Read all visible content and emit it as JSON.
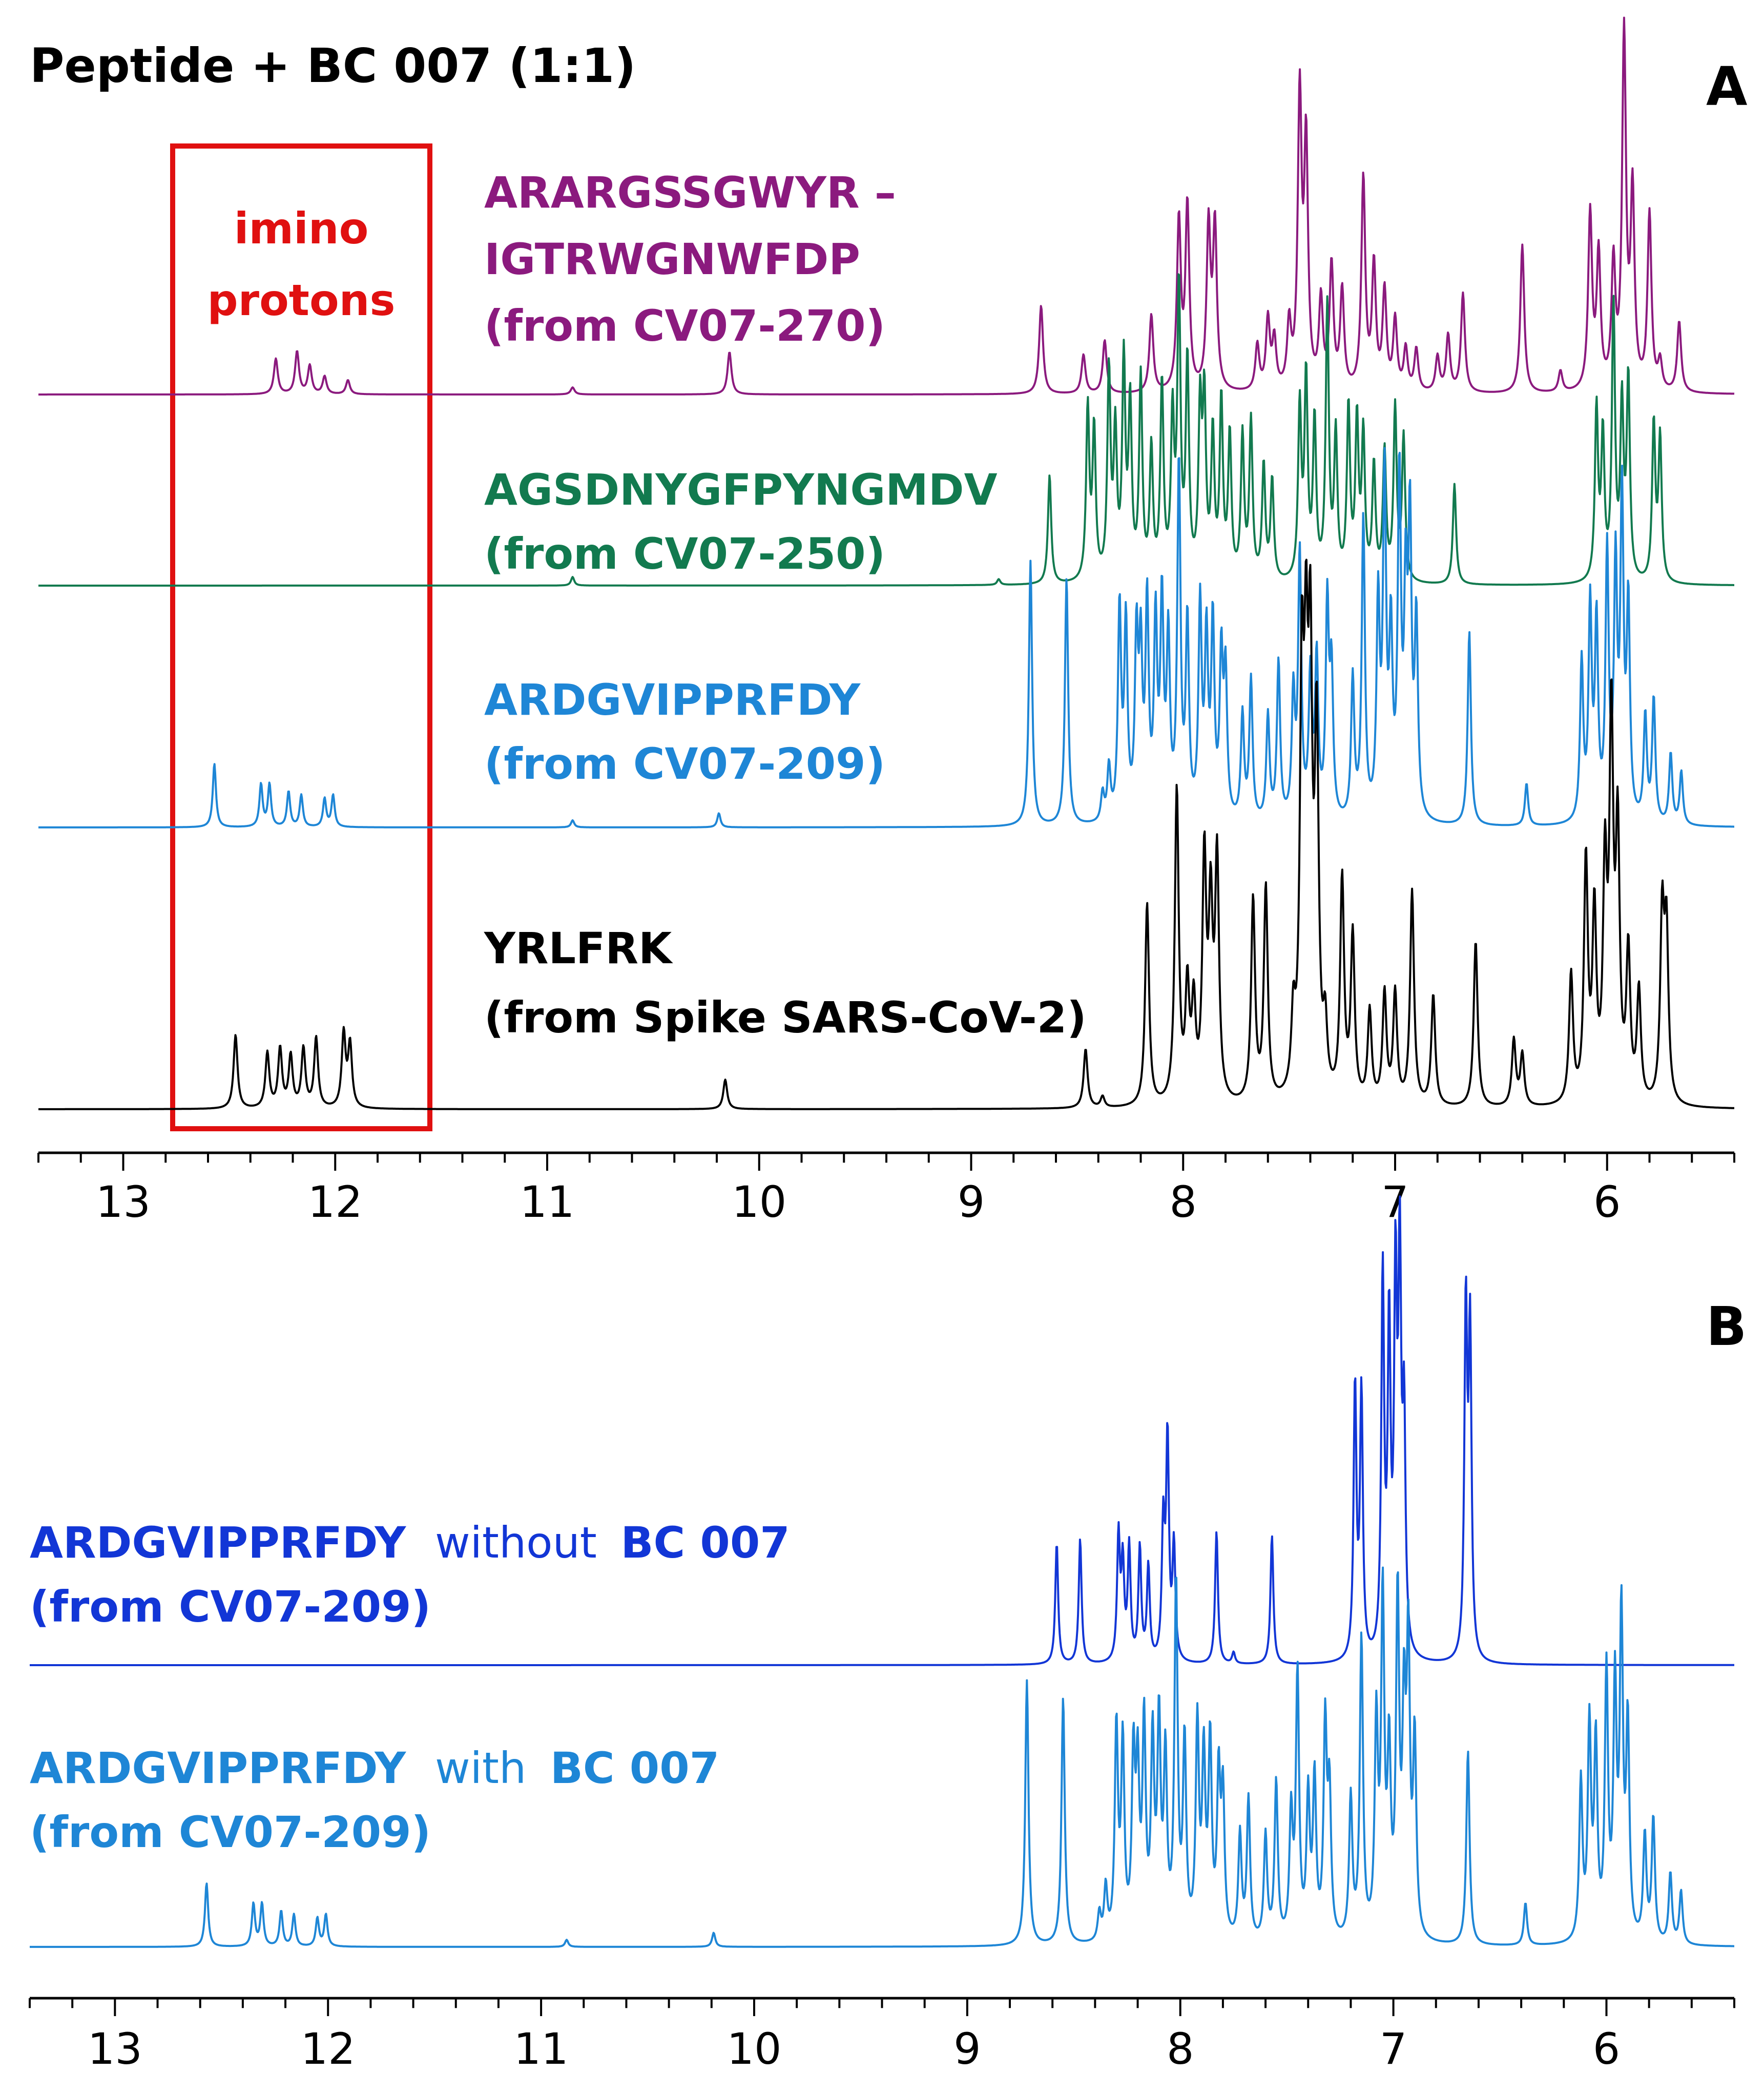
{
  "figure_title": "Peptide + BC 007 (1:1)",
  "box_label": {
    "line1": "imino",
    "line2": "protons"
  },
  "colors": {
    "purple": "#8B1A7E",
    "green": "#127A4F",
    "blue": "#1E86D6",
    "black": "#000000",
    "darkblue": "#1236D6",
    "red": "#E01010"
  },
  "chart_data": [
    {
      "panel": "A",
      "type": "line",
      "title": "Peptide + BC 007 (1:1)",
      "xlabel": "",
      "ylabel": "",
      "xlim": [
        13.4,
        5.4
      ],
      "x_ticks": [
        13,
        12,
        11,
        10,
        9,
        8,
        7,
        6
      ],
      "x_tick_labels": [
        "13",
        "12",
        "11",
        "10",
        "9",
        "8",
        "7",
        "6"
      ],
      "annotation": {
        "text": "imino protons",
        "x_range": [
          12.75,
          11.55
        ],
        "color": "#E01010"
      },
      "series": [
        {
          "name": "ARARGSSGWYR – IGTRWGNWFDP (from CV07-270)",
          "label_lines": [
            "ARARGSSGWYR –",
            "IGTRWGNWFDP",
            "(from CV07-270)"
          ],
          "color": "#8B1A7E",
          "baseline_rank": 0,
          "peak_ppm": [
            12.28,
            12.18,
            12.12,
            12.05,
            11.94,
            10.88,
            10.14,
            8.67,
            8.47,
            8.37,
            8.15,
            8.02,
            7.98,
            7.88,
            7.85,
            7.65,
            7.6,
            7.57,
            7.5,
            7.45,
            7.42,
            7.35,
            7.3,
            7.25,
            7.15,
            7.1,
            7.05,
            7.0,
            6.95,
            6.9,
            6.8,
            6.75,
            6.68,
            6.4,
            6.22,
            6.08,
            6.04,
            5.97,
            5.92,
            5.88,
            5.8,
            5.75,
            5.66
          ],
          "peak_height": [
            0.1,
            0.12,
            0.08,
            0.05,
            0.04,
            0.02,
            0.12,
            0.25,
            0.11,
            0.15,
            0.22,
            0.48,
            0.52,
            0.46,
            0.46,
            0.13,
            0.2,
            0.14,
            0.18,
            0.82,
            0.68,
            0.25,
            0.35,
            0.28,
            0.6,
            0.35,
            0.28,
            0.2,
            0.12,
            0.12,
            0.1,
            0.16,
            0.28,
            0.42,
            0.06,
            0.5,
            0.38,
            0.35,
            1.0,
            0.55,
            0.5,
            0.08,
            0.2
          ]
        },
        {
          "name": "AGSDNYGFPYNGMDV (from CV07-250)",
          "label_lines": [
            "AGSDNYGFPYNGMDV",
            "(from CV07-250)"
          ],
          "color": "#127A4F",
          "baseline_rank": 1,
          "peak_ppm": [
            10.88,
            8.87,
            8.63,
            8.45,
            8.42,
            8.35,
            8.32,
            8.28,
            8.25,
            8.2,
            8.15,
            8.1,
            8.05,
            8.02,
            7.98,
            7.92,
            7.9,
            7.86,
            7.82,
            7.78,
            7.72,
            7.68,
            7.62,
            7.58,
            7.45,
            7.42,
            7.38,
            7.32,
            7.28,
            7.22,
            7.18,
            7.15,
            7.1,
            7.05,
            7.0,
            6.96,
            6.72,
            6.05,
            6.02,
            5.97,
            5.93,
            5.9,
            5.78,
            5.75
          ],
          "peak_height": [
            0.03,
            0.02,
            0.38,
            0.6,
            0.52,
            0.72,
            0.5,
            0.75,
            0.6,
            0.7,
            0.45,
            0.68,
            0.55,
            1.0,
            0.75,
            0.58,
            0.6,
            0.5,
            0.62,
            0.5,
            0.5,
            0.55,
            0.4,
            0.35,
            0.6,
            0.7,
            0.55,
            0.95,
            0.5,
            0.6,
            0.55,
            0.5,
            0.4,
            0.45,
            0.6,
            0.5,
            0.35,
            0.6,
            0.5,
            0.95,
            0.6,
            0.7,
            0.55,
            0.5
          ]
        },
        {
          "name": "ARDGVIPPRFDY (from CV07-209)",
          "label_lines": [
            "ARDGVIPPRFDY",
            "(from CV07-209)"
          ],
          "color": "#1E86D6",
          "baseline_rank": 2,
          "peak_ppm": [
            12.57,
            12.35,
            12.31,
            12.22,
            12.16,
            12.05,
            12.01,
            10.88,
            10.19,
            8.72,
            8.55,
            8.38,
            8.35,
            8.3,
            8.27,
            8.22,
            8.2,
            8.17,
            8.13,
            8.1,
            8.07,
            8.02,
            7.98,
            7.92,
            7.89,
            7.86,
            7.82,
            7.8,
            7.72,
            7.68,
            7.6,
            7.55,
            7.48,
            7.45,
            7.4,
            7.37,
            7.32,
            7.3,
            7.2,
            7.15,
            7.08,
            7.05,
            7.02,
            6.98,
            6.95,
            6.93,
            6.9,
            6.65,
            6.38,
            6.12,
            6.08,
            6.05,
            6.0,
            5.96,
            5.93,
            5.9,
            5.82,
            5.78,
            5.7,
            5.65
          ],
          "peak_height": [
            0.18,
            0.12,
            0.12,
            0.1,
            0.09,
            0.08,
            0.09,
            0.02,
            0.04,
            0.75,
            0.7,
            0.08,
            0.15,
            0.6,
            0.55,
            0.5,
            0.45,
            0.6,
            0.55,
            0.6,
            0.5,
            1.0,
            0.55,
            0.6,
            0.5,
            0.55,
            0.45,
            0.4,
            0.3,
            0.4,
            0.3,
            0.45,
            0.35,
            0.75,
            0.4,
            0.45,
            0.6,
            0.4,
            0.4,
            0.85,
            0.6,
            0.95,
            0.5,
            0.95,
            0.6,
            0.8,
            0.55,
            0.55,
            0.12,
            0.45,
            0.6,
            0.55,
            0.75,
            0.7,
            0.9,
            0.6,
            0.3,
            0.35,
            0.2,
            0.15
          ]
        },
        {
          "name": "YRLFRK (from Spike SARS-CoV-2)",
          "label_lines": [
            "YRLFRK",
            "(from Spike SARS-CoV-2)"
          ],
          "color": "#000000",
          "baseline_rank": 3,
          "peak_ppm": [
            12.47,
            12.32,
            12.26,
            12.21,
            12.15,
            12.09,
            11.96,
            11.93,
            10.16,
            8.46,
            8.38,
            8.17,
            8.03,
            7.98,
            7.95,
            7.9,
            7.87,
            7.84,
            7.67,
            7.61,
            7.48,
            7.44,
            7.42,
            7.4,
            7.37,
            7.33,
            7.25,
            7.2,
            7.12,
            7.05,
            7.0,
            6.92,
            6.82,
            6.62,
            6.44,
            6.4,
            6.17,
            6.1,
            6.06,
            6.01,
            5.98,
            5.95,
            5.9,
            5.85,
            5.74,
            5.72
          ],
          "peak_height": [
            0.2,
            0.15,
            0.16,
            0.14,
            0.16,
            0.19,
            0.2,
            0.17,
            0.08,
            0.16,
            0.03,
            0.55,
            0.85,
            0.3,
            0.25,
            0.65,
            0.5,
            0.65,
            0.55,
            0.58,
            0.2,
            1.05,
            0.95,
            1.05,
            0.95,
            0.18,
            0.6,
            0.45,
            0.25,
            0.3,
            0.3,
            0.58,
            0.3,
            0.45,
            0.18,
            0.14,
            0.35,
            0.65,
            0.5,
            0.6,
            1.0,
            0.7,
            0.4,
            0.3,
            0.5,
            0.45
          ]
        }
      ]
    },
    {
      "panel": "B",
      "type": "line",
      "title": "",
      "xlabel": "",
      "ylabel": "",
      "xlim": [
        13.4,
        5.4
      ],
      "x_ticks": [
        13,
        12,
        11,
        10,
        9,
        8,
        7,
        6
      ],
      "x_tick_labels": [
        "13",
        "12",
        "11",
        "10",
        "9",
        "8",
        "7",
        "6"
      ],
      "series": [
        {
          "name": "ARDGVIPPRFDY without BC 007 (from CV07-209)",
          "label_seq": "ARDGVIPPRFDY",
          "label_mid": "without",
          "label_bc": "BC 007",
          "label_src": "(from CV07-209)",
          "color": "#1236D6",
          "baseline_rank": 0,
          "peak_ppm": [
            8.58,
            8.47,
            8.29,
            8.27,
            8.24,
            8.19,
            8.15,
            8.08,
            8.06,
            8.03,
            7.83,
            7.75,
            7.57,
            7.18,
            7.15,
            7.05,
            7.02,
            6.99,
            6.97,
            6.95,
            6.66,
            6.64
          ],
          "peak_height": [
            0.32,
            0.33,
            0.33,
            0.25,
            0.3,
            0.3,
            0.25,
            0.35,
            0.58,
            0.3,
            0.35,
            0.03,
            0.34,
            0.72,
            0.7,
            1.0,
            0.85,
            0.95,
            1.0,
            0.6,
            0.92,
            0.85
          ]
        },
        {
          "name": "ARDGVIPPRFDY with BC 007 (from CV07-209)",
          "label_seq": "ARDGVIPPRFDY",
          "label_mid": "with",
          "label_bc": "BC 007",
          "label_src": "(from CV07-209)",
          "color": "#1E86D6",
          "baseline_rank": 1,
          "peak_ppm": [
            12.57,
            12.35,
            12.31,
            12.22,
            12.16,
            12.05,
            12.01,
            10.88,
            10.19,
            8.72,
            8.55,
            8.38,
            8.35,
            8.3,
            8.27,
            8.22,
            8.2,
            8.17,
            8.13,
            8.1,
            8.07,
            8.02,
            7.98,
            7.92,
            7.89,
            7.86,
            7.82,
            7.8,
            7.72,
            7.68,
            7.6,
            7.55,
            7.48,
            7.45,
            7.4,
            7.37,
            7.32,
            7.3,
            7.2,
            7.15,
            7.08,
            7.05,
            7.02,
            6.98,
            6.95,
            6.93,
            6.9,
            6.65,
            6.38,
            6.12,
            6.08,
            6.05,
            6.0,
            5.96,
            5.93,
            5.9,
            5.82,
            5.78,
            5.7,
            5.65
          ],
          "peak_height": [
            0.18,
            0.12,
            0.12,
            0.1,
            0.09,
            0.08,
            0.09,
            0.02,
            0.04,
            0.75,
            0.7,
            0.08,
            0.15,
            0.6,
            0.55,
            0.5,
            0.45,
            0.6,
            0.55,
            0.6,
            0.5,
            1.0,
            0.55,
            0.6,
            0.5,
            0.55,
            0.45,
            0.4,
            0.3,
            0.4,
            0.3,
            0.45,
            0.35,
            0.75,
            0.4,
            0.45,
            0.6,
            0.4,
            0.4,
            0.85,
            0.6,
            0.95,
            0.5,
            0.95,
            0.6,
            0.8,
            0.55,
            0.55,
            0.12,
            0.45,
            0.6,
            0.55,
            0.75,
            0.7,
            0.9,
            0.6,
            0.3,
            0.35,
            0.2,
            0.15
          ]
        }
      ]
    }
  ]
}
